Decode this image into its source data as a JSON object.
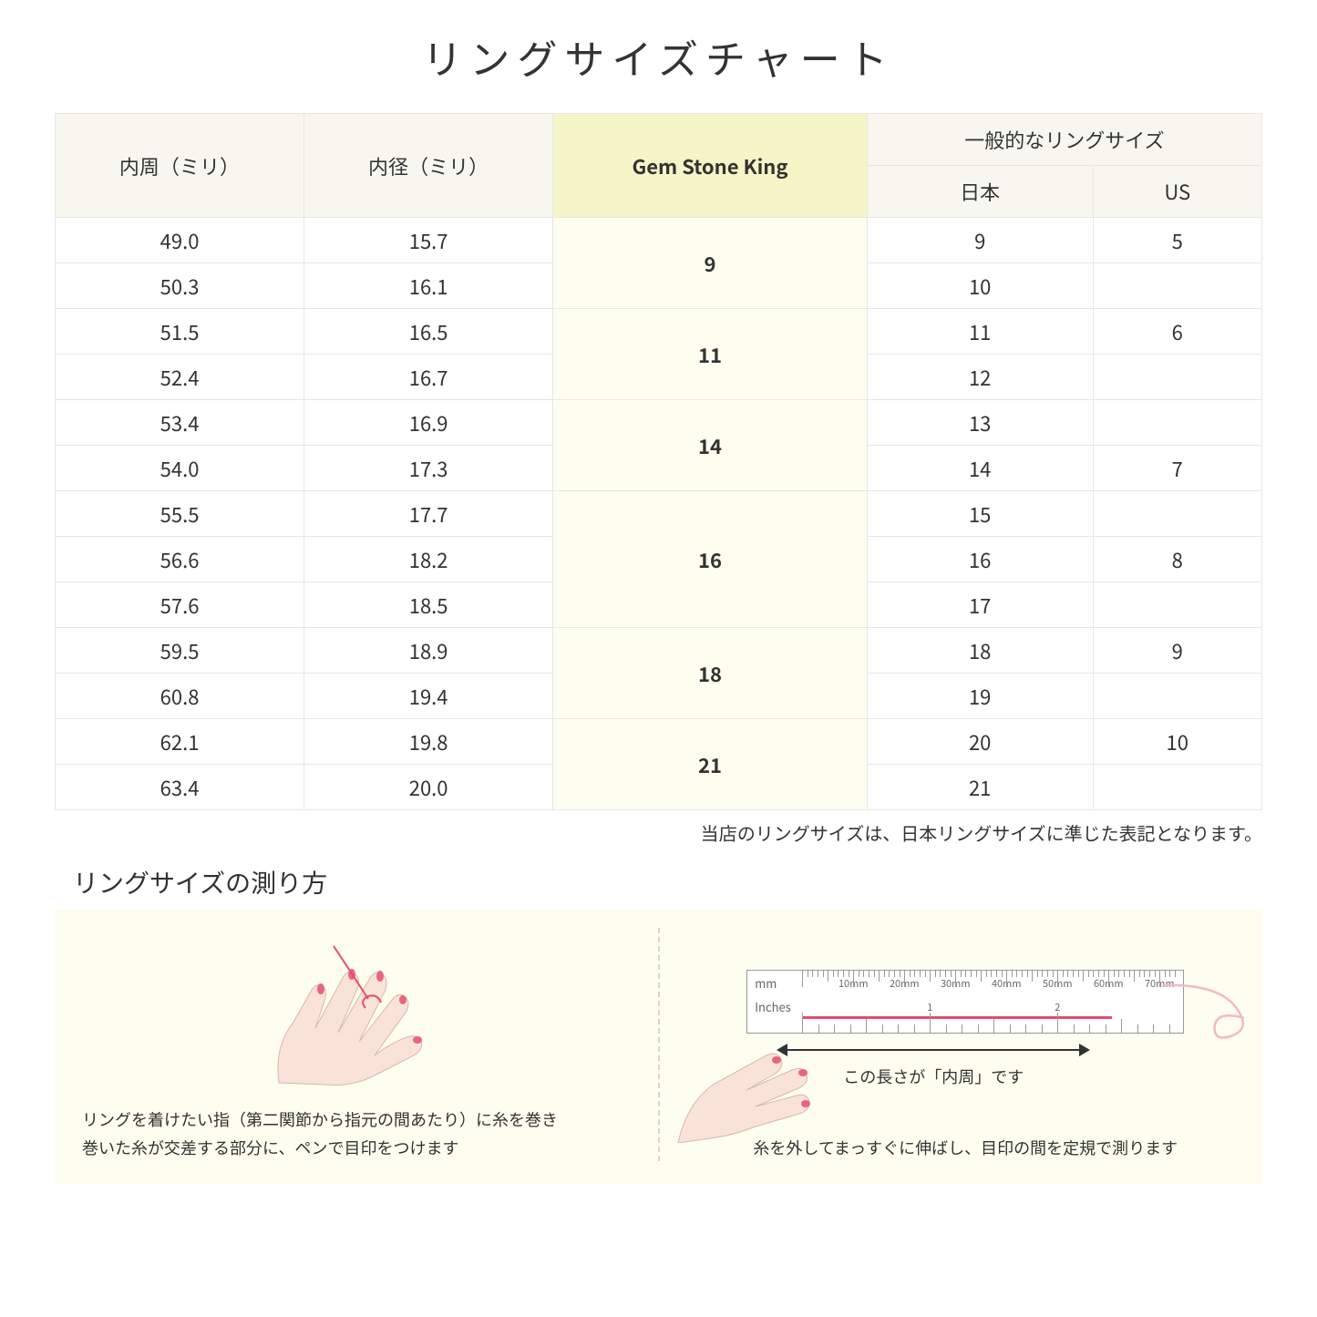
{
  "title": "リングサイズチャート",
  "headers": {
    "circumference": "内周（ミリ）",
    "diameter": "内径（ミリ）",
    "gsk": "Gem Stone King",
    "general": "一般的なリングサイズ",
    "japan": "日本",
    "us": "US"
  },
  "rows": [
    {
      "circ": "49.0",
      "dia": "15.7",
      "gsk": "9",
      "gsk_span": 2,
      "jp": "9",
      "us": "5"
    },
    {
      "circ": "50.3",
      "dia": "16.1",
      "jp": "10",
      "us": ""
    },
    {
      "circ": "51.5",
      "dia": "16.5",
      "gsk": "11",
      "gsk_span": 2,
      "jp": "11",
      "us": "6"
    },
    {
      "circ": "52.4",
      "dia": "16.7",
      "jp": "12",
      "us": ""
    },
    {
      "circ": "53.4",
      "dia": "16.9",
      "gsk": "14",
      "gsk_span": 2,
      "jp": "13",
      "us": ""
    },
    {
      "circ": "54.0",
      "dia": "17.3",
      "jp": "14",
      "us": "7"
    },
    {
      "circ": "55.5",
      "dia": "17.7",
      "gsk": "16",
      "gsk_span": 3,
      "jp": "15",
      "us": ""
    },
    {
      "circ": "56.6",
      "dia": "18.2",
      "jp": "16",
      "us": "8"
    },
    {
      "circ": "57.6",
      "dia": "18.5",
      "jp": "17",
      "us": ""
    },
    {
      "circ": "59.5",
      "dia": "18.9",
      "gsk": "18",
      "gsk_span": 2,
      "jp": "18",
      "us": "9"
    },
    {
      "circ": "60.8",
      "dia": "19.4",
      "jp": "19",
      "us": ""
    },
    {
      "circ": "62.1",
      "dia": "19.8",
      "gsk": "21",
      "gsk_span": 2,
      "jp": "20",
      "us": "10"
    },
    {
      "circ": "63.4",
      "dia": "20.0",
      "jp": "21",
      "us": ""
    }
  ],
  "note": "当店のリングサイズは、日本リングサイズに準じた表記となります。",
  "subtitle": "リングサイズの測り方",
  "left_instruction": "リングを着けたい指（第二関節から指元の間あたり）に糸を巻き\n巻いた糸が交差する部分に、ペンで目印をつけます",
  "right_instruction": "糸を外してまっすぐに伸ばし、目印の間を定規で測ります",
  "dimension_label": "この長さが「内周」です",
  "ruler": {
    "mm_label": "mm",
    "in_label": "Inches",
    "mm_marks": [
      "10mm",
      "20mm",
      "30mm",
      "40mm",
      "50mm",
      "60mm",
      "70mm"
    ],
    "in_marks": [
      "1",
      "2"
    ]
  },
  "colors": {
    "header_bg": "#f7f7f0",
    "highlight_bg": "#f5f5c8",
    "highlight_cell": "#fdfdf0",
    "border": "#e8e8e0",
    "accent": "#e74c6c",
    "skin": "#f9e3d9",
    "nail": "#e8657f"
  }
}
